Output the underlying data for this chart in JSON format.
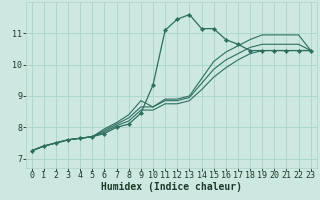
{
  "xlabel": "Humidex (Indice chaleur)",
  "background_color": "#cce8e0",
  "grid_color": "#aad4cc",
  "line_color": "#2d6e5e",
  "xlim": [
    -0.5,
    23.5
  ],
  "ylim": [
    6.7,
    12.0
  ],
  "x_ticks": [
    0,
    1,
    2,
    3,
    4,
    5,
    6,
    7,
    8,
    9,
    10,
    11,
    12,
    13,
    14,
    15,
    16,
    17,
    18,
    19,
    20,
    21,
    22,
    23
  ],
  "y_ticks": [
    7,
    8,
    9,
    10,
    11
  ],
  "series": [
    [
      7.25,
      7.4,
      7.5,
      7.6,
      7.65,
      7.7,
      7.8,
      8.0,
      8.1,
      8.45,
      9.35,
      11.1,
      11.45,
      11.6,
      11.15,
      11.15,
      10.8,
      10.65,
      10.45,
      10.45,
      10.45,
      10.45,
      10.45,
      10.45
    ],
    [
      7.25,
      7.4,
      7.5,
      7.6,
      7.65,
      7.7,
      7.85,
      8.05,
      8.2,
      8.55,
      8.55,
      8.75,
      8.75,
      8.85,
      9.2,
      9.6,
      9.9,
      10.15,
      10.35,
      10.45,
      10.45,
      10.45,
      10.45,
      10.45
    ],
    [
      7.25,
      7.4,
      7.5,
      7.6,
      7.65,
      7.7,
      7.9,
      8.1,
      8.3,
      8.65,
      8.65,
      8.85,
      8.85,
      8.95,
      9.4,
      9.85,
      10.15,
      10.35,
      10.55,
      10.65,
      10.65,
      10.65,
      10.65,
      10.45
    ],
    [
      7.25,
      7.4,
      7.5,
      7.6,
      7.65,
      7.7,
      7.95,
      8.15,
      8.4,
      8.85,
      8.65,
      8.9,
      8.9,
      9.0,
      9.55,
      10.1,
      10.4,
      10.6,
      10.8,
      10.95,
      10.95,
      10.95,
      10.95,
      10.45
    ]
  ],
  "fontsize_xlabel": 7,
  "fontsize_ticks": 6,
  "lw_main": 0.9,
  "lw_other": 0.8,
  "marker": "D",
  "markersize": 2.2
}
